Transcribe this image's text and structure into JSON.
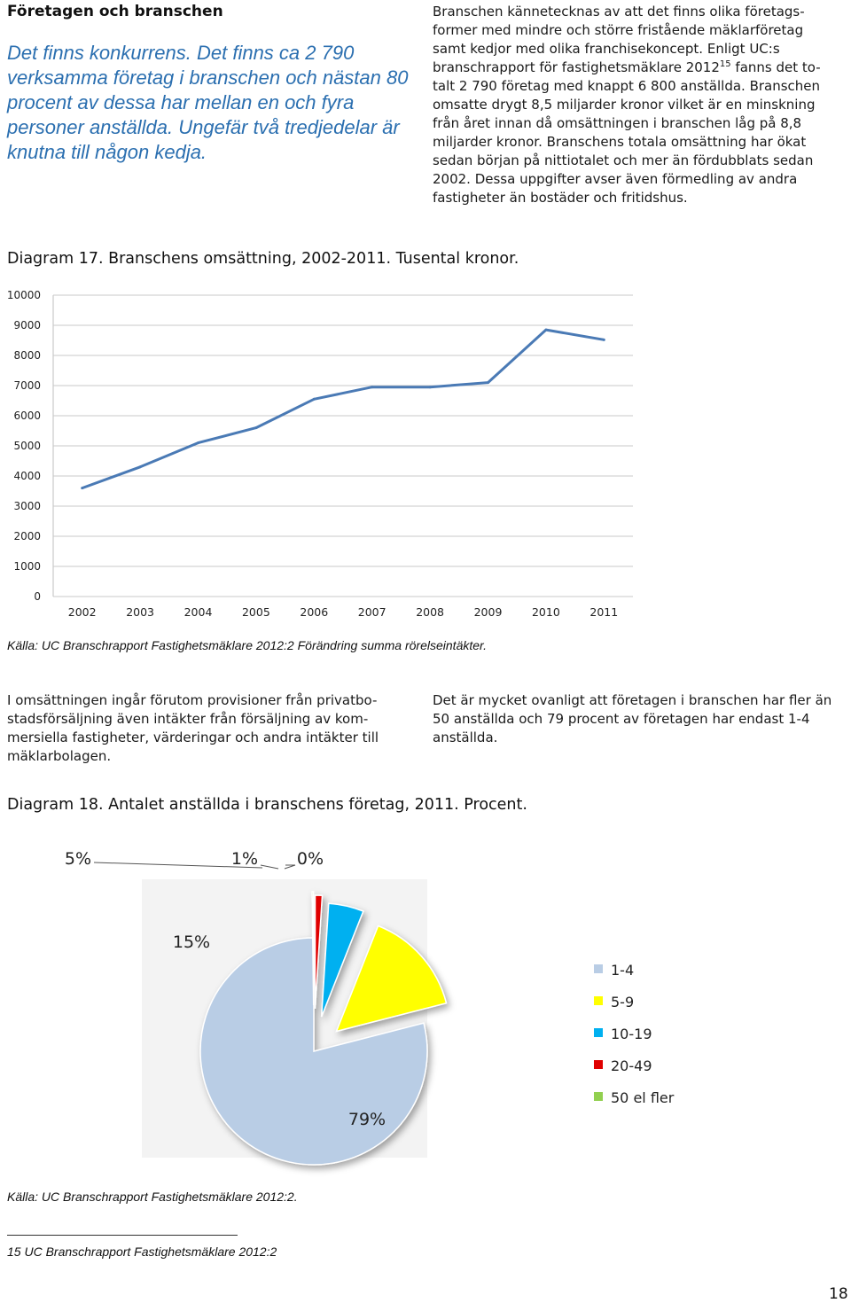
{
  "section_title": "Företagen och branschen",
  "lead": "Det finns konkurrens. Det finns ca 2 790 verksamma företag i branschen och nästan 80 procent av dessa har mellan en och fyra personer anställda. Ungefär två tredjedelar är knutna till någon kedja.",
  "intro": {
    "part1": "Branschen kännetecknas av att det finns olika företags-former med mindre och större fristående mäklarföretag samt kedjor med olika franchisekoncept. Enligt UC:s branschrapport för fastighetsmäklare 2012",
    "footnote_ref": "15",
    "part2": " fanns det to-talt 2 790 företag med knappt 6 800 anställda. Branschen omsatte drygt 8,5 miljarder kronor vilket är en minskning från året innan då omsättningen i branschen låg på 8,8 miljarder kronor. Branschens totala omsättning har ökat sedan början på nittiotalet och mer än fördubblats sedan 2002. Dessa uppgifter avser även förmedling av andra fastigheter än bostäder och fritidshus."
  },
  "diagram17": {
    "title": "Diagram 17. Branschens omsättning, 2002-2011. Tusental kronor.",
    "source": "Källa: UC Branschrapport Fastighetsmäklare 2012:2 Förändring summa rörelseintäkter."
  },
  "col_left": "I omsättningen ingår förutom provisioner från privatbo-stadsförsäljning även intäkter från försäljning av kom-mersiella fastigheter, värderingar och andra intäkter till mäklarbolagen.",
  "col_right": "Det är mycket ovanligt att företagen i branschen har fler än 50 anställda och 79 procent av företagen har endast 1-4 anställda.",
  "diagram18": {
    "title": "Diagram 18. Antalet anställda i branschens företag, 2011. Procent.",
    "source": "Källa: UC Branschrapport Fastighetsmäklare 2012:2."
  },
  "footnote": "15 UC Branschrapport Fastighetsmäklare 2012:2",
  "page_number": "18",
  "chart_data": [
    {
      "type": "line",
      "categories": [
        "2002",
        "2003",
        "2004",
        "2005",
        "2006",
        "2007",
        "2008",
        "2009",
        "2010",
        "2011"
      ],
      "series": [
        {
          "values": [
            3600,
            4300,
            5100,
            5600,
            6550,
            6950,
            6950,
            7100,
            8850,
            8520
          ],
          "color": "#4a7ab5"
        }
      ],
      "yticks": [
        0,
        1000,
        2000,
        3000,
        4000,
        5000,
        6000,
        7000,
        8000,
        9000,
        10000
      ],
      "ylim": [
        0,
        10000
      ],
      "grid": true,
      "legend": "none"
    },
    {
      "type": "pie",
      "slices": [
        {
          "label": "1-4",
          "value": 79,
          "text": "79%",
          "color": "#b9cde5"
        },
        {
          "label": "5-9",
          "value": 15,
          "text": "15%",
          "color": "#ffff00"
        },
        {
          "label": "10-19",
          "value": 5,
          "text": "5%",
          "color": "#00b0f0"
        },
        {
          "label": "20-49",
          "value": 1,
          "text": "1%",
          "color": "#e00000"
        },
        {
          "label": "50 el fler",
          "value": 0,
          "text": "0%",
          "color": "#92d050"
        }
      ],
      "exploded": true,
      "shadow": true,
      "legend": "right"
    }
  ]
}
